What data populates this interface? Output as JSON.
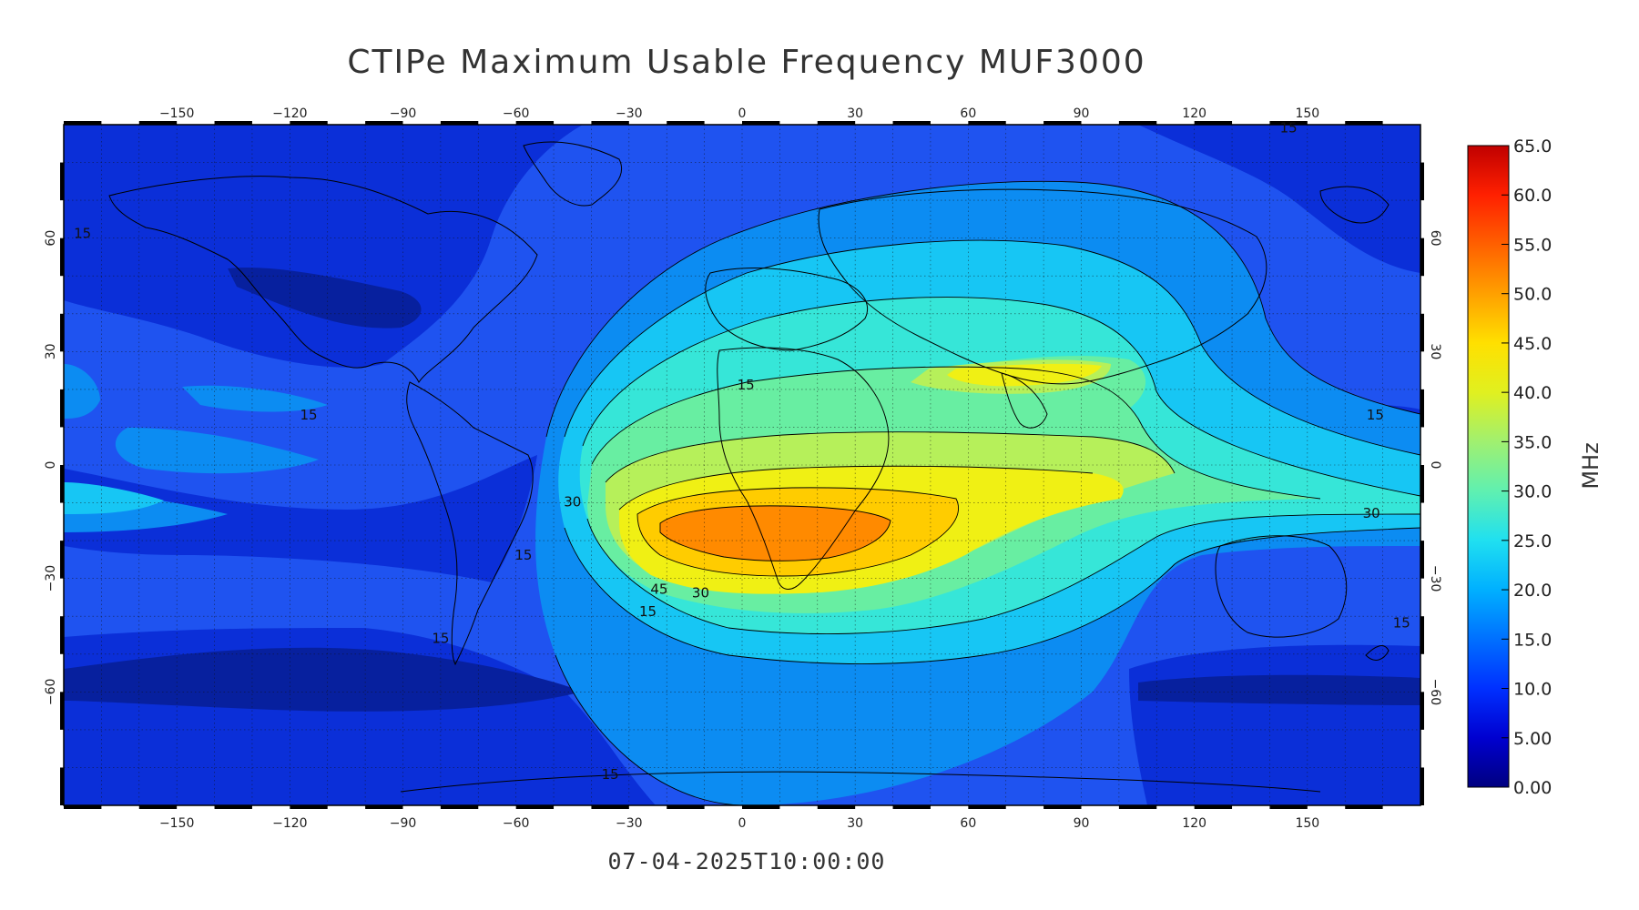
{
  "title": "CTIPe Maximum Usable Frequency MUF3000",
  "timestamp": "07-04-2025T10:00:00",
  "colorbar": {
    "unit": "MHz",
    "ticks": [
      "0.00",
      "5.00",
      "10.0",
      "15.0",
      "20.0",
      "25.0",
      "30.0",
      "35.0",
      "40.0",
      "45.0",
      "50.0",
      "55.0",
      "60.0",
      "65.0"
    ],
    "range": [
      0,
      65
    ],
    "colors": [
      "#000080",
      "#0000d0",
      "#0030ff",
      "#0070ff",
      "#00b0ff",
      "#20e0f0",
      "#60f0b0",
      "#a0f070",
      "#e0f020",
      "#ffe000",
      "#ffa000",
      "#ff6000",
      "#ff2000",
      "#c00000"
    ]
  },
  "map": {
    "lon_ticks": [
      "-150",
      "-120",
      "-90",
      "-60",
      "-30",
      "0",
      "30",
      "60",
      "90",
      "120",
      "150"
    ],
    "lat_ticks": [
      "60",
      "30",
      "0",
      "-30",
      "-60"
    ],
    "lon_range": [
      -180,
      180
    ],
    "lat_range": [
      -90,
      90
    ],
    "contour_labels": [
      "15",
      "15",
      "30",
      "15",
      "15",
      "15",
      "15",
      "30",
      "15",
      "30",
      "45",
      "15",
      "15",
      "15"
    ]
  }
}
